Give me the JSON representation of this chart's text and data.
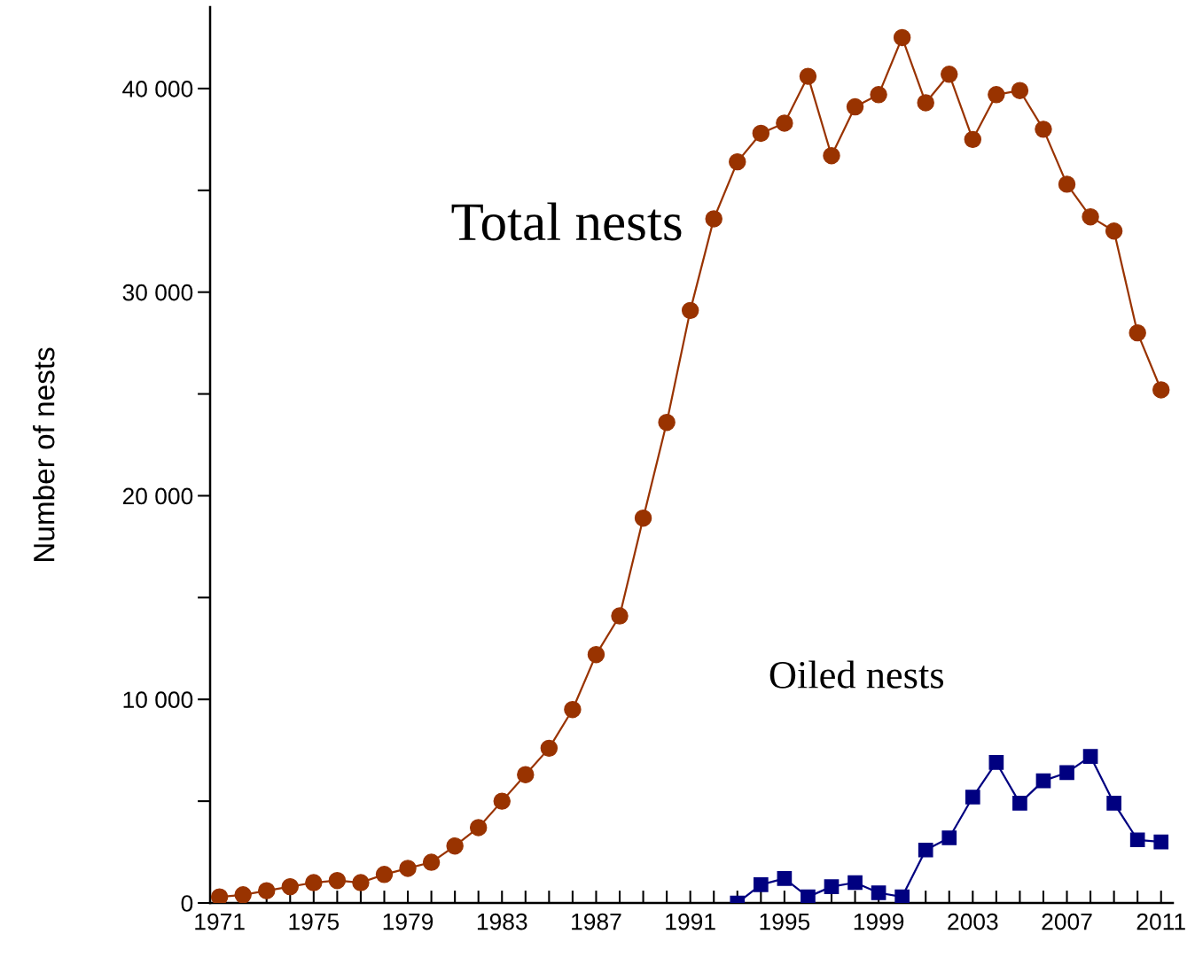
{
  "chart_data": {
    "type": "line",
    "ylabel": "Number of nests",
    "x": [
      1971,
      1972,
      1973,
      1974,
      1975,
      1976,
      1977,
      1978,
      1979,
      1980,
      1981,
      1982,
      1983,
      1984,
      1985,
      1986,
      1987,
      1988,
      1989,
      1990,
      1991,
      1992,
      1993,
      1994,
      1995,
      1996,
      1997,
      1998,
      1999,
      2000,
      2001,
      2002,
      2003,
      2004,
      2005,
      2006,
      2007,
      2008,
      2009,
      2010,
      2011
    ],
    "series": [
      {
        "name": "Total nests",
        "color": "#993300",
        "marker": "circle",
        "values": [
          300,
          400,
          600,
          800,
          1000,
          1100,
          1000,
          1400,
          1700,
          2000,
          2800,
          3700,
          5000,
          6300,
          7600,
          9500,
          12200,
          14100,
          18900,
          23600,
          29100,
          33600,
          36400,
          37800,
          38300,
          40600,
          36700,
          39100,
          39700,
          42500,
          39300,
          40700,
          37500,
          39700,
          39900,
          38000,
          35300,
          33700,
          33000,
          28000,
          25200
        ]
      },
      {
        "name": "Oiled nests",
        "color": "#000080",
        "marker": "square",
        "x": [
          1993,
          1994,
          1995,
          1996,
          1997,
          1998,
          1999,
          2000,
          2001,
          2002,
          2003,
          2004,
          2005,
          2006,
          2007,
          2008,
          2009,
          2010,
          2011
        ],
        "values": [
          0,
          900,
          1200,
          300,
          800,
          1000,
          500,
          300,
          2600,
          3200,
          5200,
          6900,
          4900,
          6000,
          6400,
          7200,
          4900,
          3100,
          3000
        ]
      }
    ],
    "xlim": [
      1970.6,
      2011.5
    ],
    "ylim": [
      0,
      44000
    ],
    "xticks": [
      1971,
      {
        "value": 1972,
        "label": null
      },
      {
        "value": 1973,
        "label": null
      },
      {
        "value": 1974,
        "label": null
      },
      1975,
      {
        "value": 1976,
        "label": null
      },
      {
        "value": 1977,
        "label": null
      },
      {
        "value": 1978,
        "label": null
      },
      1979,
      {
        "value": 1980,
        "label": null
      },
      {
        "value": 1981,
        "label": null
      },
      {
        "value": 1982,
        "label": null
      },
      1983,
      {
        "value": 1984,
        "label": null
      },
      {
        "value": 1985,
        "label": null
      },
      {
        "value": 1986,
        "label": null
      },
      1987,
      {
        "value": 1988,
        "label": null
      },
      {
        "value": 1989,
        "label": null
      },
      {
        "value": 1990,
        "label": null
      },
      1991,
      {
        "value": 1992,
        "label": null
      },
      {
        "value": 1993,
        "label": null
      },
      {
        "value": 1994,
        "label": null
      },
      1995,
      {
        "value": 1996,
        "label": null
      },
      {
        "value": 1997,
        "label": null
      },
      {
        "value": 1998,
        "label": null
      },
      1999,
      {
        "value": 2000,
        "label": null
      },
      {
        "value": 2001,
        "label": null
      },
      {
        "value": 2002,
        "label": null
      },
      2003,
      {
        "value": 2004,
        "label": null
      },
      {
        "value": 2005,
        "label": null
      },
      {
        "value": 2006,
        "label": null
      },
      2007,
      {
        "value": 2008,
        "label": null
      },
      {
        "value": 2009,
        "label": null
      },
      {
        "value": 2010,
        "label": null
      },
      2011
    ],
    "yticks": [
      {
        "value": 0,
        "label": "0"
      },
      {
        "value": 5000,
        "label": null
      },
      {
        "value": 10000,
        "label": "10 000"
      },
      {
        "value": 15000,
        "label": null
      },
      {
        "value": 20000,
        "label": "20 000"
      },
      {
        "value": 25000,
        "label": null
      },
      {
        "value": 30000,
        "label": "30 000"
      },
      {
        "value": 35000,
        "label": null
      },
      {
        "value": 40000,
        "label": "40 000"
      }
    ],
    "grid": false,
    "legend": false,
    "line_style": "solid"
  }
}
